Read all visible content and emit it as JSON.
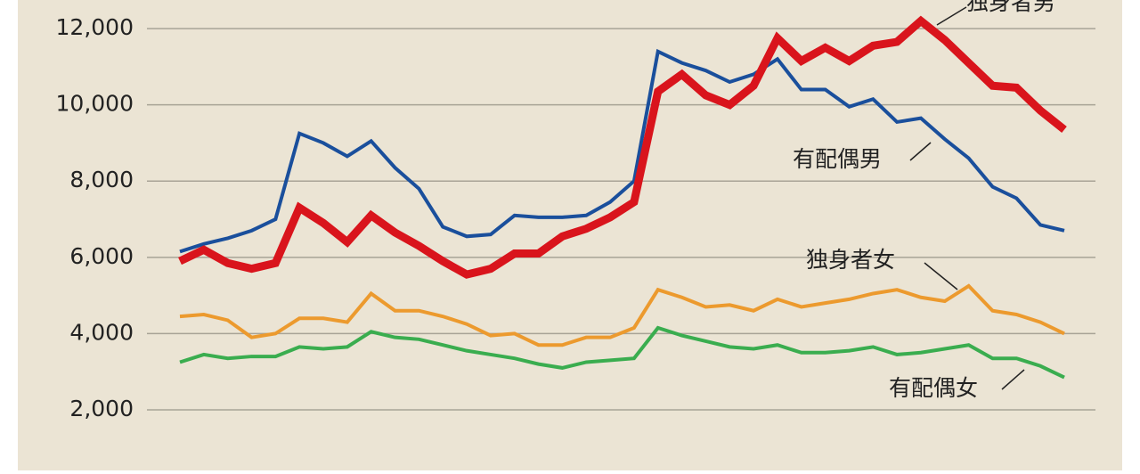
{
  "chart_data": {
    "type": "line",
    "categories": [
      null,
      null,
      null,
      null,
      null,
      null,
      null,
      null,
      null,
      null,
      null,
      null,
      null,
      null,
      null,
      null,
      null,
      null,
      null,
      null,
      null,
      null,
      null,
      null,
      null,
      null,
      null,
      null,
      null,
      null,
      null,
      null,
      null,
      null,
      null,
      null,
      null,
      null
    ],
    "series": [
      {
        "name": "有配偶男",
        "color": "#1a4f9c",
        "line_width": 4,
        "values": [
          6150,
          6350,
          6500,
          6700,
          7000,
          9250,
          9000,
          8650,
          9050,
          8350,
          7800,
          6800,
          6550,
          6600,
          7100,
          7050,
          7050,
          7100,
          7450,
          8000,
          11400,
          11100,
          10900,
          10600,
          10800,
          11200,
          10400,
          10400,
          9950,
          10150,
          9550,
          9650,
          9100,
          8600,
          7850,
          7550,
          6850,
          6700
        ]
      },
      {
        "name": "独身者男",
        "color": "#d9141c",
        "line_width": 9,
        "values": [
          5900,
          6200,
          5850,
          5700,
          5850,
          7300,
          6900,
          6400,
          7100,
          6650,
          6300,
          5900,
          5550,
          5700,
          6100,
          6100,
          6550,
          6750,
          7050,
          7450,
          10350,
          10800,
          10250,
          10000,
          10500,
          11750,
          11150,
          11500,
          11150,
          11550,
          11650,
          12200,
          11700,
          11100,
          10500,
          10450,
          9850,
          9350
        ]
      },
      {
        "name": "独身者女",
        "color": "#ec9a2e",
        "line_width": 4,
        "values": [
          4450,
          4500,
          4350,
          3900,
          4000,
          4400,
          4400,
          4300,
          5050,
          4600,
          4600,
          4450,
          4250,
          3950,
          4000,
          3700,
          3700,
          3900,
          3900,
          4150,
          5150,
          4950,
          4700,
          4750,
          4600,
          4900,
          4700,
          4800,
          4900,
          5050,
          5150,
          4950,
          4850,
          5250,
          4600,
          4500,
          4300,
          4000
        ]
      },
      {
        "name": "有配偶女",
        "color": "#3aad4f",
        "line_width": 4,
        "values": [
          3250,
          3450,
          3350,
          3400,
          3400,
          3650,
          3600,
          3650,
          4050,
          3900,
          3850,
          3700,
          3550,
          3450,
          3350,
          3200,
          3100,
          3250,
          3300,
          3350,
          4150,
          3950,
          3800,
          3650,
          3600,
          3700,
          3500,
          3500,
          3550,
          3650,
          3450,
          3500,
          3600,
          3700,
          3350,
          3350,
          3150,
          2850
        ]
      }
    ],
    "ylim": [
      410,
      12750
    ],
    "yticks": [
      {
        "value": 2000,
        "label": "2,000"
      },
      {
        "value": 4000,
        "label": "4,000"
      },
      {
        "value": 6000,
        "label": "6,000"
      },
      {
        "value": 8000,
        "label": "8,000"
      },
      {
        "value": 10000,
        "label": "10,000"
      },
      {
        "value": 12000,
        "label": "12,000"
      }
    ],
    "grid": true
  }
}
